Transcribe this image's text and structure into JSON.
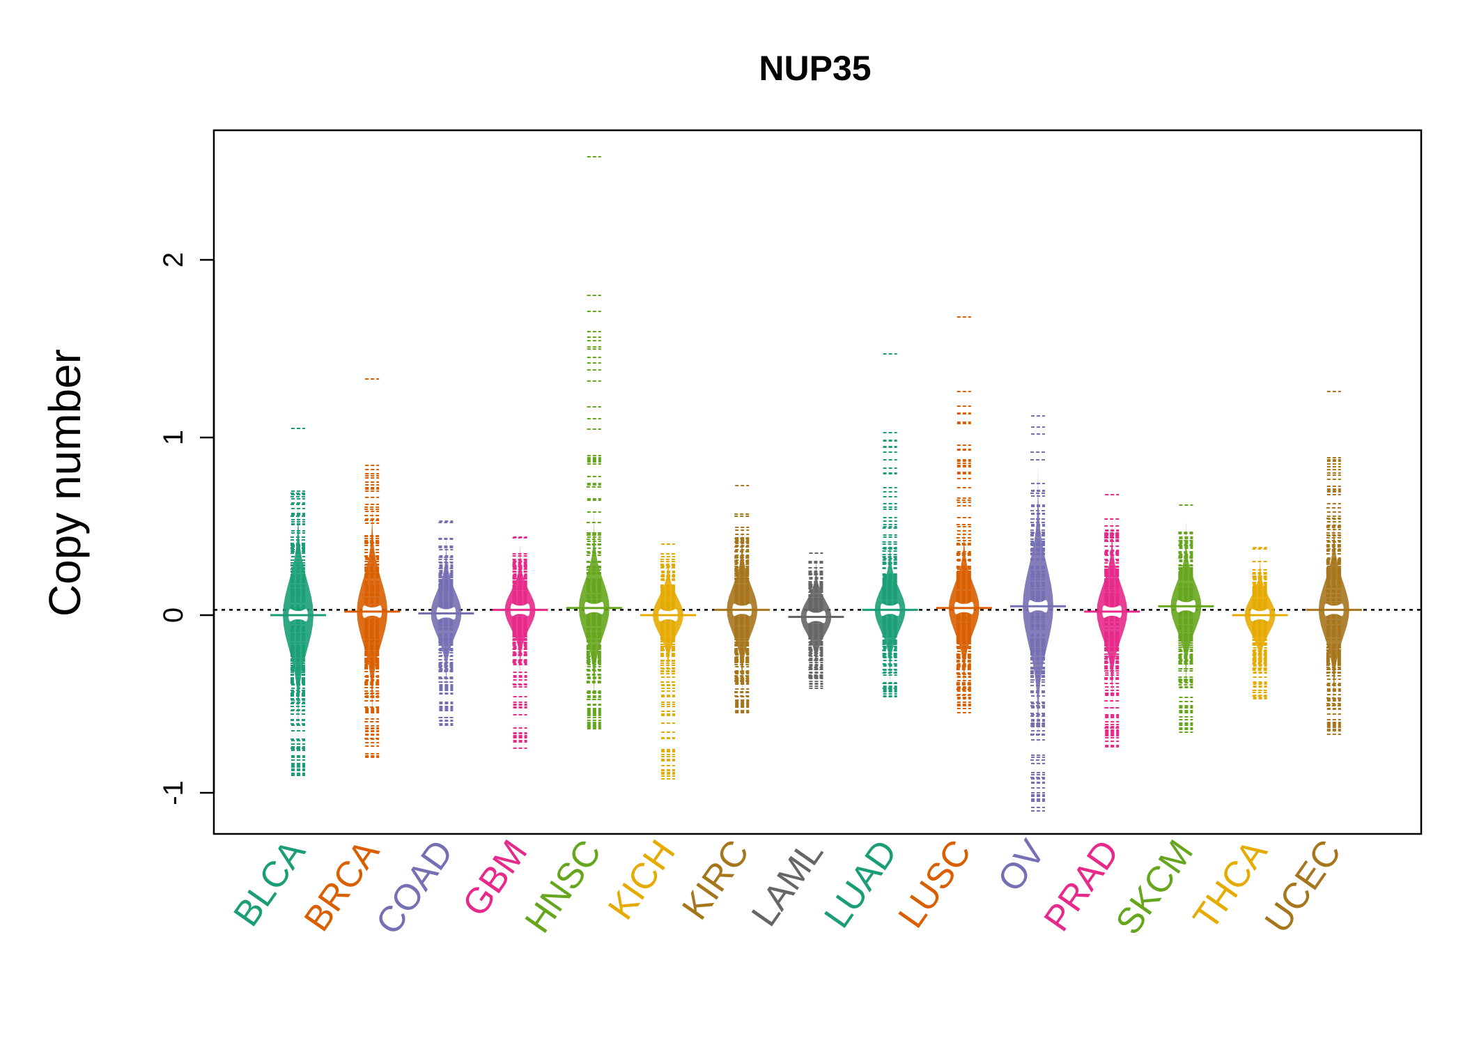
{
  "chart_data": {
    "type": "beanplot",
    "title": "NUP35",
    "ylabel": "Copy number",
    "xlabel": "",
    "ylim": [
      -1.2,
      2.65
    ],
    "yticks": [
      -1,
      0,
      1,
      2
    ],
    "ytick_labels": [
      "-1",
      "0",
      "1",
      "2"
    ],
    "overall_mean": 0.03,
    "grid": false,
    "legend": "none",
    "categories": [
      "BLCA",
      "BRCA",
      "COAD",
      "GBM",
      "HNSC",
      "KICH",
      "KIRC",
      "LAML",
      "LUAD",
      "LUSC",
      "OV",
      "PRAD",
      "SKCM",
      "THCA",
      "UCEC"
    ],
    "colors": [
      "#1B9E77",
      "#D95F02",
      "#7570B3",
      "#E7298A",
      "#66A61E",
      "#E6AB02",
      "#A6761D",
      "#666666",
      "#1B9E77",
      "#D95F02",
      "#7570B3",
      "#E7298A",
      "#66A61E",
      "#E6AB02",
      "#A6761D"
    ],
    "series": [
      {
        "name": "BLCA",
        "center": 0.0,
        "min": -0.9,
        "max": 1.05,
        "outliers": [
          1.05,
          0.6,
          -0.75,
          -0.9
        ]
      },
      {
        "name": "BRCA",
        "center": 0.02,
        "min": -0.8,
        "max": 1.33,
        "outliers": [
          1.33,
          0.82,
          0.7,
          -0.8
        ]
      },
      {
        "name": "COAD",
        "center": 0.01,
        "min": -0.62,
        "max": 0.53,
        "outliers": [
          0.53,
          -0.62
        ]
      },
      {
        "name": "GBM",
        "center": 0.03,
        "min": -0.75,
        "max": 0.44,
        "outliers": [
          0.44,
          -0.56,
          -0.75
        ]
      },
      {
        "name": "HNSC",
        "center": 0.04,
        "min": -0.64,
        "max": 2.58,
        "outliers": [
          2.58,
          1.38,
          0.9,
          0.78,
          -0.64
        ]
      },
      {
        "name": "KICH",
        "center": 0.0,
        "min": -0.92,
        "max": 0.4,
        "outliers": [
          0.4,
          0.33,
          -0.92
        ]
      },
      {
        "name": "KIRC",
        "center": 0.03,
        "min": -0.55,
        "max": 0.73,
        "outliers": [
          0.73,
          -0.55
        ]
      },
      {
        "name": "LAML",
        "center": -0.01,
        "min": -0.41,
        "max": 0.35,
        "outliers": [
          0.35,
          -0.41
        ]
      },
      {
        "name": "LUAD",
        "center": 0.03,
        "min": -0.46,
        "max": 1.47,
        "outliers": [
          1.47,
          0.98,
          -0.46
        ]
      },
      {
        "name": "LUSC",
        "center": 0.04,
        "min": -0.55,
        "max": 1.68,
        "outliers": [
          1.68,
          1.26,
          1.08,
          -0.55
        ]
      },
      {
        "name": "OV",
        "center": 0.05,
        "min": -1.1,
        "max": 1.12,
        "outliers": [
          1.12,
          1.06,
          1.02,
          -1.1
        ]
      },
      {
        "name": "PRAD",
        "center": 0.02,
        "min": -0.74,
        "max": 0.68,
        "outliers": [
          0.68,
          -0.74
        ]
      },
      {
        "name": "SKCM",
        "center": 0.05,
        "min": -0.66,
        "max": 0.62,
        "outliers": [
          0.62,
          -0.66
        ]
      },
      {
        "name": "THCA",
        "center": 0.0,
        "min": -0.47,
        "max": 0.38,
        "outliers": [
          0.38,
          -0.47
        ]
      },
      {
        "name": "UCEC",
        "center": 0.03,
        "min": -0.67,
        "max": 1.26,
        "outliers": [
          1.26,
          -0.67
        ]
      }
    ]
  }
}
